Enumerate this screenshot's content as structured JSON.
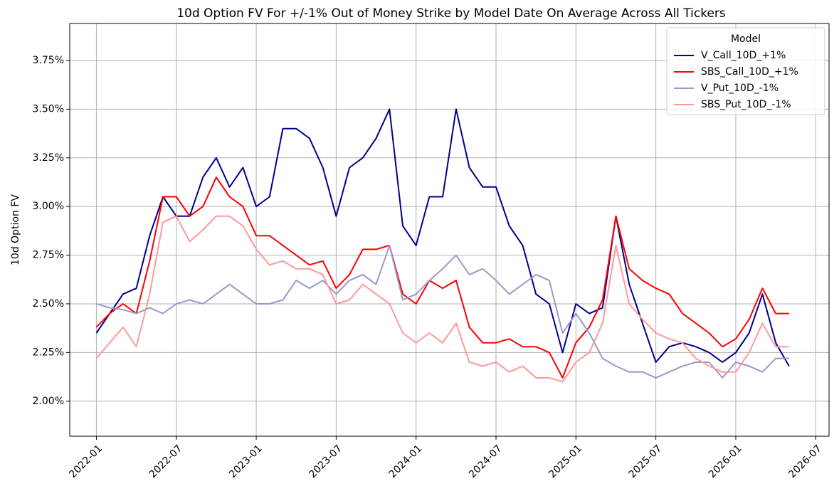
{
  "chart_data": {
    "type": "line",
    "title": "10d Option FV For +/-1% Out of Money Strike by Model Date On Average Across All Tickers",
    "y_label": "10d Option FV",
    "legend_title": "Model",
    "legend": "upper right",
    "grid": true,
    "x": [
      "2022-01",
      "2022-02",
      "2022-03",
      "2022-04",
      "2022-05",
      "2022-06",
      "2022-07",
      "2022-08",
      "2022-09",
      "2022-10",
      "2022-11",
      "2022-12",
      "2023-01",
      "2023-02",
      "2023-03",
      "2023-04",
      "2023-05",
      "2023-06",
      "2023-07",
      "2023-08",
      "2023-09",
      "2023-10",
      "2023-11",
      "2023-12",
      "2024-01",
      "2024-02",
      "2024-03",
      "2024-04",
      "2024-05",
      "2024-06",
      "2024-07",
      "2024-08",
      "2024-09",
      "2024-10",
      "2024-11",
      "2024-12",
      "2025-01",
      "2025-02",
      "2025-03",
      "2025-04",
      "2025-05",
      "2025-06",
      "2025-07",
      "2025-08",
      "2025-09",
      "2025-10",
      "2025-11",
      "2025-12",
      "2026-01",
      "2026-02",
      "2026-03",
      "2026-04",
      "2026-05"
    ],
    "series": [
      {
        "name": "V_Call_10D_+1%",
        "color": "#00008b",
        "values": [
          2.35,
          2.45,
          2.55,
          2.58,
          2.85,
          3.05,
          2.95,
          2.95,
          3.15,
          3.25,
          3.1,
          3.2,
          3.0,
          3.05,
          3.4,
          3.4,
          3.35,
          3.2,
          2.95,
          3.2,
          3.25,
          3.35,
          3.5,
          2.9,
          2.8,
          3.05,
          3.05,
          3.5,
          3.2,
          3.1,
          3.1,
          2.9,
          2.8,
          2.55,
          2.5,
          2.25,
          2.5,
          2.45,
          2.48,
          2.95,
          2.6,
          2.4,
          2.2,
          2.28,
          2.3,
          2.28,
          2.25,
          2.2,
          2.25,
          2.35,
          2.55,
          2.3,
          2.18
        ]
      },
      {
        "name": "SBS_Call_10D_+1%",
        "color": "#ff0000",
        "values": [
          2.38,
          2.45,
          2.5,
          2.45,
          2.72,
          3.05,
          3.05,
          2.95,
          3.0,
          3.15,
          3.05,
          3.0,
          2.85,
          2.85,
          2.8,
          2.75,
          2.7,
          2.72,
          2.58,
          2.65,
          2.78,
          2.78,
          2.8,
          2.55,
          2.5,
          2.62,
          2.58,
          2.62,
          2.38,
          2.3,
          2.3,
          2.32,
          2.28,
          2.28,
          2.25,
          2.12,
          2.3,
          2.38,
          2.52,
          2.95,
          2.68,
          2.62,
          2.58,
          2.55,
          2.45,
          2.4,
          2.35,
          2.28,
          2.32,
          2.42,
          2.58,
          2.45,
          2.45
        ]
      },
      {
        "name": "V_Put_10D_-1%",
        "color": "#9999cc",
        "values": [
          2.5,
          2.48,
          2.47,
          2.45,
          2.48,
          2.45,
          2.5,
          2.52,
          2.5,
          2.55,
          2.6,
          2.55,
          2.5,
          2.5,
          2.52,
          2.62,
          2.58,
          2.62,
          2.55,
          2.62,
          2.65,
          2.6,
          2.8,
          2.52,
          2.55,
          2.62,
          2.68,
          2.75,
          2.65,
          2.68,
          2.62,
          2.55,
          2.6,
          2.65,
          2.62,
          2.35,
          2.45,
          2.35,
          2.22,
          2.18,
          2.15,
          2.15,
          2.12,
          2.15,
          2.18,
          2.2,
          2.2,
          2.12,
          2.2,
          2.18,
          2.15,
          2.22,
          2.22
        ]
      },
      {
        "name": "SBS_Put_10D_-1%",
        "color": "#ff9999",
        "values": [
          2.22,
          2.3,
          2.38,
          2.28,
          2.55,
          2.92,
          2.95,
          2.82,
          2.88,
          2.95,
          2.95,
          2.9,
          2.78,
          2.7,
          2.72,
          2.68,
          2.68,
          2.65,
          2.5,
          2.52,
          2.6,
          2.55,
          2.5,
          2.35,
          2.3,
          2.35,
          2.3,
          2.4,
          2.2,
          2.18,
          2.2,
          2.15,
          2.18,
          2.12,
          2.12,
          2.1,
          2.2,
          2.25,
          2.4,
          2.8,
          2.5,
          2.42,
          2.35,
          2.32,
          2.3,
          2.22,
          2.18,
          2.15,
          2.15,
          2.25,
          2.4,
          2.28,
          2.28
        ]
      }
    ],
    "xlim": [
      "2021-11",
      "2026-08"
    ],
    "xticks": [
      "2022-01",
      "2022-07",
      "2023-01",
      "2023-07",
      "2024-01",
      "2024-07",
      "2025-01",
      "2025-07",
      "2026-01",
      "2026-07"
    ],
    "ylim": [
      1.82,
      3.94
    ],
    "yticks": [
      {
        "value": 2.0,
        "label": "2.00%"
      },
      {
        "value": 2.25,
        "label": "2.25%"
      },
      {
        "value": 2.5,
        "label": "2.50%"
      },
      {
        "value": 2.75,
        "label": "2.75%"
      },
      {
        "value": 3.0,
        "label": "3.00%"
      },
      {
        "value": 3.25,
        "label": "3.25%"
      },
      {
        "value": 3.5,
        "label": "3.50%"
      },
      {
        "value": 3.75,
        "label": "3.75%"
      }
    ]
  }
}
